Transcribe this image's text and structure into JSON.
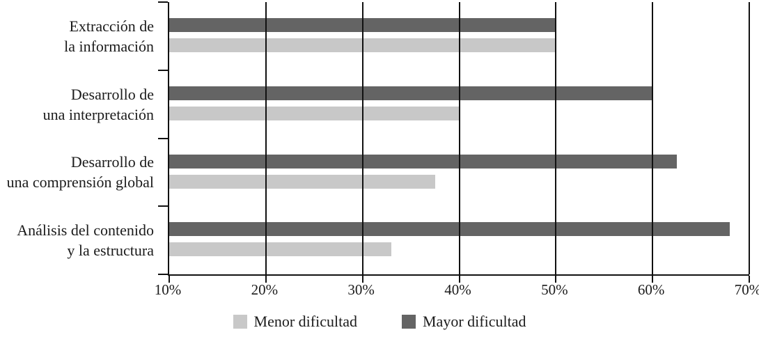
{
  "chart_data": {
    "type": "bar",
    "orientation": "horizontal",
    "title": "",
    "xlabel": "",
    "ylabel": "",
    "categories": [
      "Extracción de la información",
      "Desarrollo de una interpretación",
      "Desarrollo de una comprensión global",
      "Análisis del contenido y la estructura"
    ],
    "category_lines": [
      [
        "Extracción de",
        "la información"
      ],
      [
        "Desarrollo de",
        "una interpretación"
      ],
      [
        "Desarrollo de",
        "una comprensión global"
      ],
      [
        "Análisis del contenido",
        "y la estructura"
      ]
    ],
    "series": [
      {
        "name": "Mayor dificultad",
        "color": "#646464",
        "values": [
          50,
          60,
          62.5,
          68
        ]
      },
      {
        "name": "Menor dificultad",
        "color": "#c8c8c8",
        "values": [
          50,
          40,
          37.5,
          33
        ]
      }
    ],
    "bar_order": "Mayor dificultad (dark) on top, Menor dificultad (light) below, per category",
    "xlim": [
      10,
      70
    ],
    "xtick_labels": [
      "10%",
      "20%",
      "30%",
      "40%",
      "50%",
      "60%",
      "70%"
    ],
    "grid": "vertical gridlines at every tick, drawn over bars",
    "legend": {
      "position": "bottom-center",
      "items": [
        {
          "label": "Menor dificultad",
          "color": "#c8c8c8"
        },
        {
          "label": "Mayor dificultad",
          "color": "#646464"
        }
      ]
    },
    "axis_color": "#111111"
  }
}
